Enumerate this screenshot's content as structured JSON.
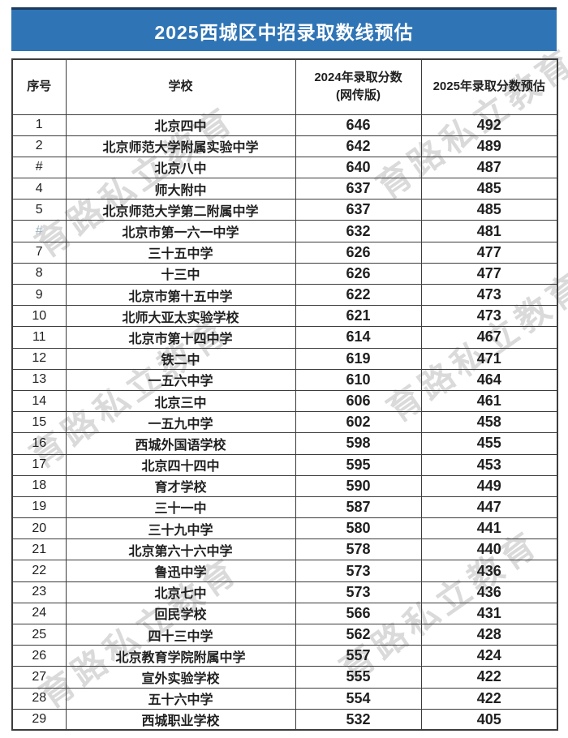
{
  "title": "2025西城区中招录取数线预估",
  "watermark": {
    "text": "育路私立教育"
  },
  "colors": {
    "title_bar": "#2F74B5",
    "title_bar_edge": "#1B3A5F",
    "border": "#3C3C3C",
    "muted_serial": "#9FB3BD",
    "title_text": "#FFFFFF"
  },
  "table": {
    "headers": {
      "serial": "序号",
      "school": "学校",
      "score_2024_line1": "2024年录取分数",
      "score_2024_line2": "(网传版)",
      "score_2025": "2025年录取分数预估"
    },
    "rows": [
      {
        "no": "1",
        "school": "北京四中",
        "score_2024": "646",
        "score_2025": "492"
      },
      {
        "no": "2",
        "school": "北京师范大学附属实验中学",
        "score_2024": "642",
        "score_2025": "489"
      },
      {
        "no": "#",
        "school": "北京八中",
        "score_2024": "640",
        "score_2025": "487"
      },
      {
        "no": "4",
        "school": "师大附中",
        "score_2024": "637",
        "score_2025": "485"
      },
      {
        "no": "5",
        "school": "北京师范大学第二附属中学",
        "score_2024": "637",
        "score_2025": "485"
      },
      {
        "no": "#",
        "muted": true,
        "school": "北京市第一六一中学",
        "score_2024": "632",
        "score_2025": "481"
      },
      {
        "no": "7",
        "school": "三十五中学",
        "score_2024": "626",
        "score_2025": "477"
      },
      {
        "no": "8",
        "school": "十三中",
        "score_2024": "626",
        "score_2025": "477"
      },
      {
        "no": "9",
        "school": "北京市第十五中学",
        "score_2024": "622",
        "score_2025": "473"
      },
      {
        "no": "10",
        "school": "北师大亚太实验学校",
        "score_2024": "621",
        "score_2025": "473"
      },
      {
        "no": "11",
        "school": "北京市第十四中学",
        "score_2024": "614",
        "score_2025": "467"
      },
      {
        "no": "12",
        "school": "铁二中",
        "score_2024": "619",
        "score_2025": "471"
      },
      {
        "no": "13",
        "school": "一五六中学",
        "score_2024": "610",
        "score_2025": "464"
      },
      {
        "no": "14",
        "school": "北京三中",
        "score_2024": "606",
        "score_2025": "461"
      },
      {
        "no": "15",
        "school": "一五九中学",
        "score_2024": "602",
        "score_2025": "458"
      },
      {
        "no": "16",
        "school": "西城外国语学校",
        "score_2024": "598",
        "score_2025": "455"
      },
      {
        "no": "17",
        "school": "北京四十四中",
        "score_2024": "595",
        "score_2025": "453"
      },
      {
        "no": "18",
        "school": "育才学校",
        "score_2024": "590",
        "score_2025": "449"
      },
      {
        "no": "19",
        "school": "三十一中",
        "score_2024": "587",
        "score_2025": "447"
      },
      {
        "no": "20",
        "school": "三十九中学",
        "score_2024": "580",
        "score_2025": "441"
      },
      {
        "no": "21",
        "school": "北京第六十六中学",
        "score_2024": "578",
        "score_2025": "440"
      },
      {
        "no": "22",
        "school": "鲁迅中学",
        "score_2024": "573",
        "score_2025": "436"
      },
      {
        "no": "23",
        "school": "北京七中",
        "score_2024": "573",
        "score_2025": "436"
      },
      {
        "no": "24",
        "school": "回民学校",
        "score_2024": "566",
        "score_2025": "431"
      },
      {
        "no": "25",
        "school": "四十三中学",
        "score_2024": "562",
        "score_2025": "428"
      },
      {
        "no": "26",
        "school": "北京教育学院附属中学",
        "score_2024": "557",
        "score_2025": "424"
      },
      {
        "no": "27",
        "school": "宣外实验学校",
        "score_2024": "555",
        "score_2025": "422"
      },
      {
        "no": "28",
        "school": "五十六中学",
        "score_2024": "554",
        "score_2025": "422"
      },
      {
        "no": "29",
        "school": "西城职业学校",
        "score_2024": "532",
        "score_2025": "405"
      }
    ]
  }
}
